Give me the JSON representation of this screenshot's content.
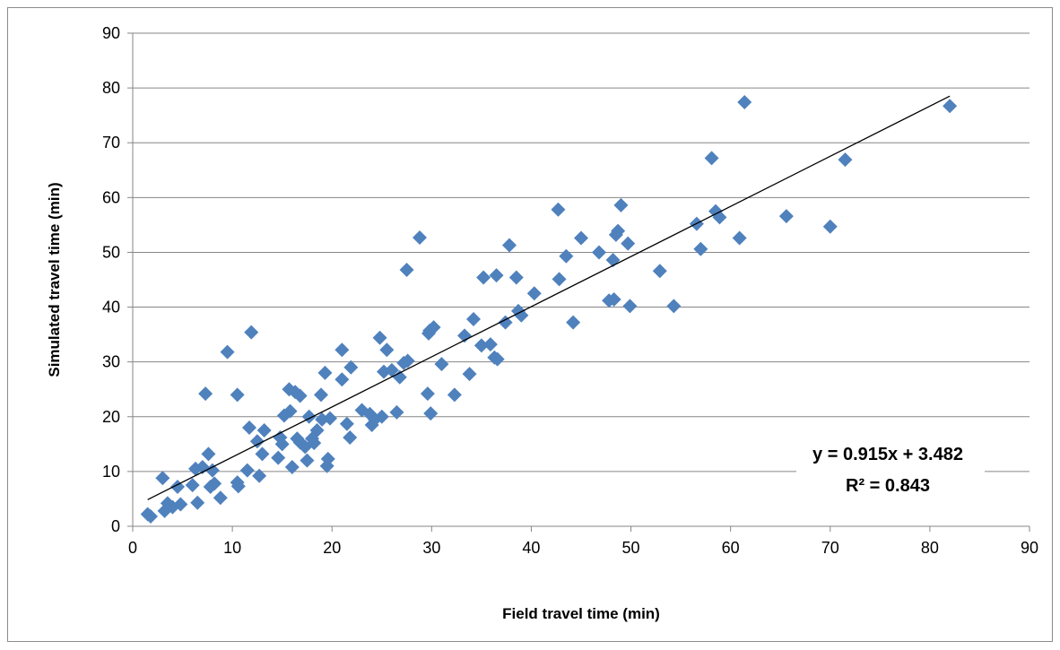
{
  "chart_data": {
    "type": "scatter",
    "title": "",
    "xlabel": "Field travel time (min)",
    "ylabel": "Simulated travel time (min)",
    "xlim": [
      0,
      90
    ],
    "ylim": [
      0,
      90
    ],
    "x_ticks": [
      "0",
      "10",
      "20",
      "30",
      "40",
      "50",
      "60",
      "70",
      "80",
      "90"
    ],
    "y_ticks": [
      "0",
      "10",
      "20",
      "30",
      "40",
      "50",
      "60",
      "70",
      "80",
      "90"
    ],
    "grid": "horizontal",
    "marker": "diamond",
    "marker_color": "#4f81bd",
    "trendline": {
      "type": "linear",
      "slope": 0.915,
      "intercept": 3.482,
      "color": "#000000"
    },
    "annotations": {
      "equation": "y = 0.915x + 3.482",
      "r_squared": "R² = 0.843"
    },
    "points": [
      [
        1.5,
        2.2
      ],
      [
        1.8,
        1.8
      ],
      [
        3.0,
        8.8
      ],
      [
        3.2,
        2.8
      ],
      [
        3.5,
        4.2
      ],
      [
        4.0,
        3.5
      ],
      [
        4.5,
        7.2
      ],
      [
        4.8,
        4.0
      ],
      [
        6.0,
        7.5
      ],
      [
        6.3,
        10.5
      ],
      [
        6.5,
        4.3
      ],
      [
        7.0,
        10.8
      ],
      [
        7.3,
        24.2
      ],
      [
        7.6,
        13.2
      ],
      [
        7.8,
        7.2
      ],
      [
        8.0,
        10.2
      ],
      [
        8.2,
        7.8
      ],
      [
        8.8,
        5.2
      ],
      [
        9.5,
        31.8
      ],
      [
        10.5,
        24.0
      ],
      [
        10.5,
        8.0
      ],
      [
        10.6,
        7.3
      ],
      [
        11.5,
        10.2
      ],
      [
        11.7,
        18.0
      ],
      [
        11.9,
        35.4
      ],
      [
        12.5,
        15.5
      ],
      [
        12.7,
        9.2
      ],
      [
        13.0,
        13.2
      ],
      [
        13.2,
        17.5
      ],
      [
        14.6,
        12.5
      ],
      [
        14.8,
        16.2
      ],
      [
        15.0,
        15.0
      ],
      [
        15.2,
        20.2
      ],
      [
        15.7,
        25.0
      ],
      [
        15.8,
        21.0
      ],
      [
        16.0,
        10.8
      ],
      [
        16.3,
        24.5
      ],
      [
        16.5,
        16.0
      ],
      [
        16.8,
        15.3
      ],
      [
        16.8,
        23.8
      ],
      [
        17.3,
        14.5
      ],
      [
        17.5,
        12.0
      ],
      [
        17.7,
        20.0
      ],
      [
        18.0,
        16.0
      ],
      [
        18.2,
        15.2
      ],
      [
        18.5,
        17.5
      ],
      [
        18.9,
        24.0
      ],
      [
        19.0,
        19.5
      ],
      [
        19.3,
        28.0
      ],
      [
        19.5,
        11.0
      ],
      [
        19.6,
        12.3
      ],
      [
        19.8,
        19.7
      ],
      [
        21.0,
        32.2
      ],
      [
        21.0,
        26.8
      ],
      [
        21.5,
        18.7
      ],
      [
        21.8,
        16.2
      ],
      [
        21.9,
        29.0
      ],
      [
        23.0,
        21.2
      ],
      [
        23.8,
        20.5
      ],
      [
        24.0,
        18.5
      ],
      [
        24.3,
        19.5
      ],
      [
        24.8,
        34.4
      ],
      [
        25.0,
        20.0
      ],
      [
        25.2,
        28.2
      ],
      [
        25.5,
        32.2
      ],
      [
        26.0,
        28.5
      ],
      [
        26.5,
        20.8
      ],
      [
        26.8,
        27.2
      ],
      [
        27.2,
        29.8
      ],
      [
        27.5,
        46.8
      ],
      [
        27.6,
        30.2
      ],
      [
        28.8,
        52.7
      ],
      [
        29.6,
        24.2
      ],
      [
        29.7,
        35.2
      ],
      [
        29.8,
        35.7
      ],
      [
        29.9,
        20.6
      ],
      [
        30.2,
        36.3
      ],
      [
        31.0,
        29.6
      ],
      [
        32.3,
        24.0
      ],
      [
        33.3,
        34.8
      ],
      [
        33.8,
        27.8
      ],
      [
        34.2,
        37.8
      ],
      [
        35.0,
        33.0
      ],
      [
        35.2,
        45.4
      ],
      [
        35.9,
        33.2
      ],
      [
        36.3,
        30.8
      ],
      [
        36.5,
        45.8
      ],
      [
        36.6,
        30.5
      ],
      [
        37.4,
        37.2
      ],
      [
        37.8,
        51.3
      ],
      [
        38.5,
        45.4
      ],
      [
        38.7,
        39.3
      ],
      [
        39.0,
        38.5
      ],
      [
        40.3,
        42.5
      ],
      [
        42.7,
        57.8
      ],
      [
        42.8,
        45.1
      ],
      [
        43.5,
        49.3
      ],
      [
        44.2,
        37.2
      ],
      [
        45.0,
        52.6
      ],
      [
        46.8,
        50.0
      ],
      [
        47.8,
        41.2
      ],
      [
        48.2,
        48.6
      ],
      [
        48.3,
        41.4
      ],
      [
        48.5,
        53.2
      ],
      [
        48.7,
        53.9
      ],
      [
        49.0,
        58.6
      ],
      [
        49.7,
        51.6
      ],
      [
        49.9,
        40.2
      ],
      [
        52.9,
        46.6
      ],
      [
        54.3,
        40.2
      ],
      [
        56.6,
        55.2
      ],
      [
        57.0,
        50.6
      ],
      [
        58.1,
        67.2
      ],
      [
        58.5,
        57.5
      ],
      [
        58.9,
        56.4
      ],
      [
        60.9,
        52.6
      ],
      [
        61.4,
        77.4
      ],
      [
        65.6,
        56.6
      ],
      [
        70.0,
        54.7
      ],
      [
        71.5,
        66.9
      ],
      [
        82.0,
        76.7
      ]
    ]
  }
}
